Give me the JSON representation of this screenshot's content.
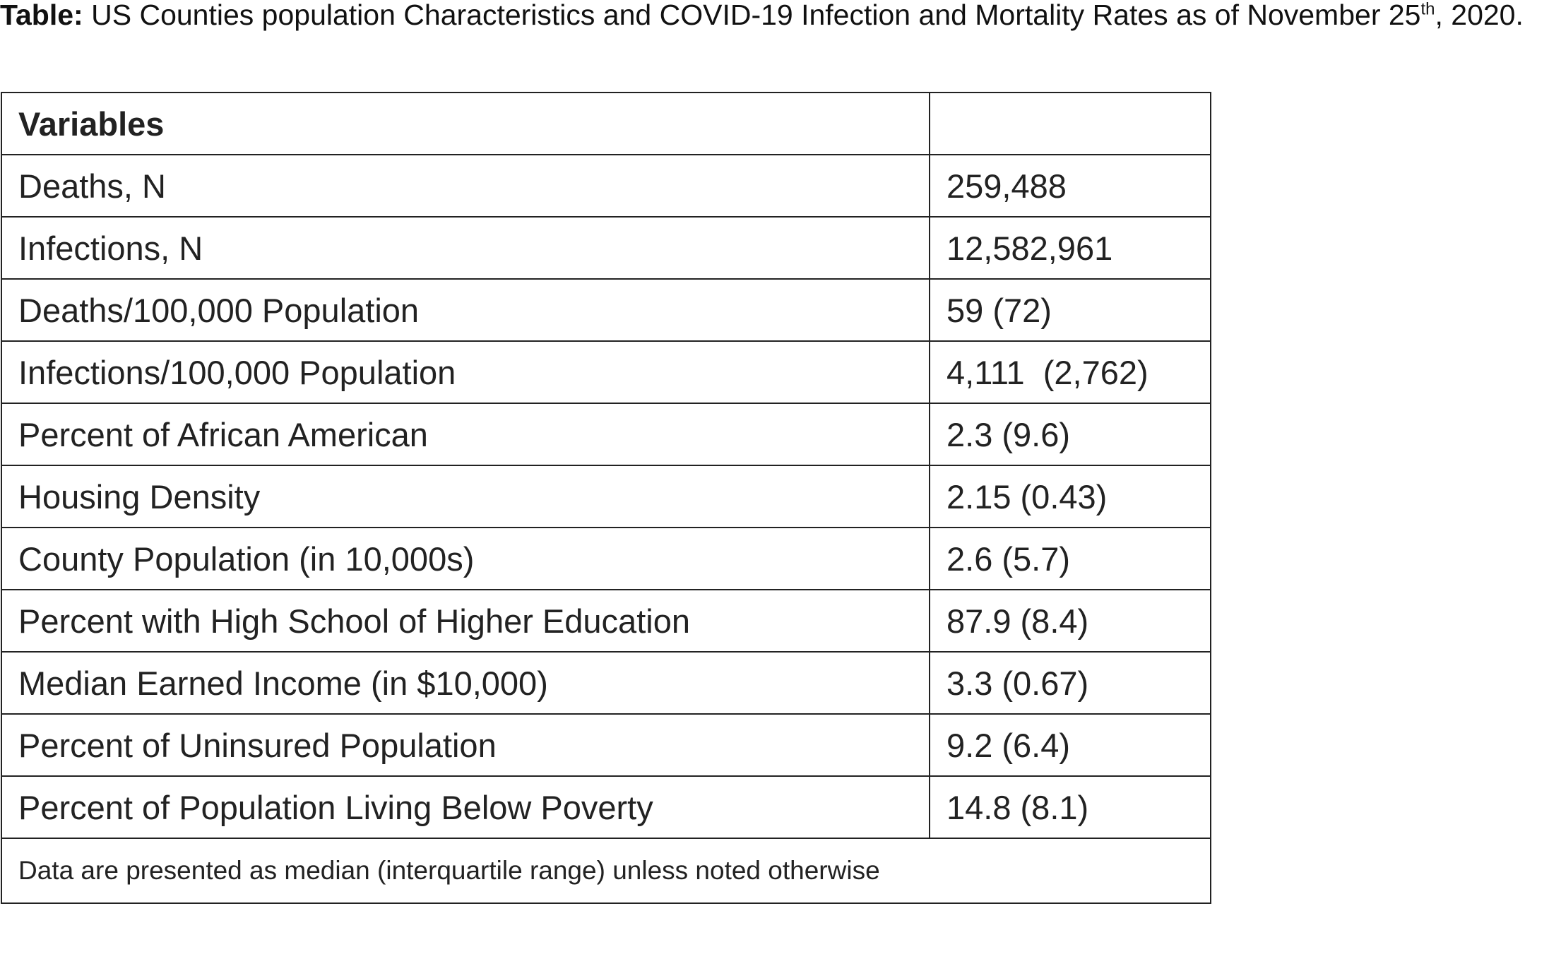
{
  "title": {
    "label": "Table:",
    "text": "US Counties population Characteristics and COVID-19 Infection and Mortality Rates as of November 25",
    "superscript": "th",
    "text_after": ", 2020."
  },
  "table": {
    "header": "Variables",
    "rows": [
      [
        "Deaths, N",
        "259,488"
      ],
      [
        "Infections, N",
        "12,582,961"
      ],
      [
        "Deaths/100,000 Population",
        "59 (72)"
      ],
      [
        "Infections/100,000 Population",
        "4,111  (2,762)"
      ],
      [
        "Percent of African American",
        "2.3 (9.6)"
      ],
      [
        "Housing Density",
        "2.15 (0.43)"
      ],
      [
        "County Population (in 10,000s)",
        "2.6 (5.7)"
      ],
      [
        "Percent with High School of Higher Education",
        "87.9 (8.4)"
      ],
      [
        "Median Earned Income (in $10,000)",
        "3.3 (0.67)"
      ],
      [
        "Percent of Uninsured Population",
        "9.2 (6.4)"
      ],
      [
        "Percent of Population Living Below Poverty",
        "14.8 (8.1)"
      ]
    ],
    "footer": "Data are presented as median (interquartile range) unless noted otherwise"
  }
}
